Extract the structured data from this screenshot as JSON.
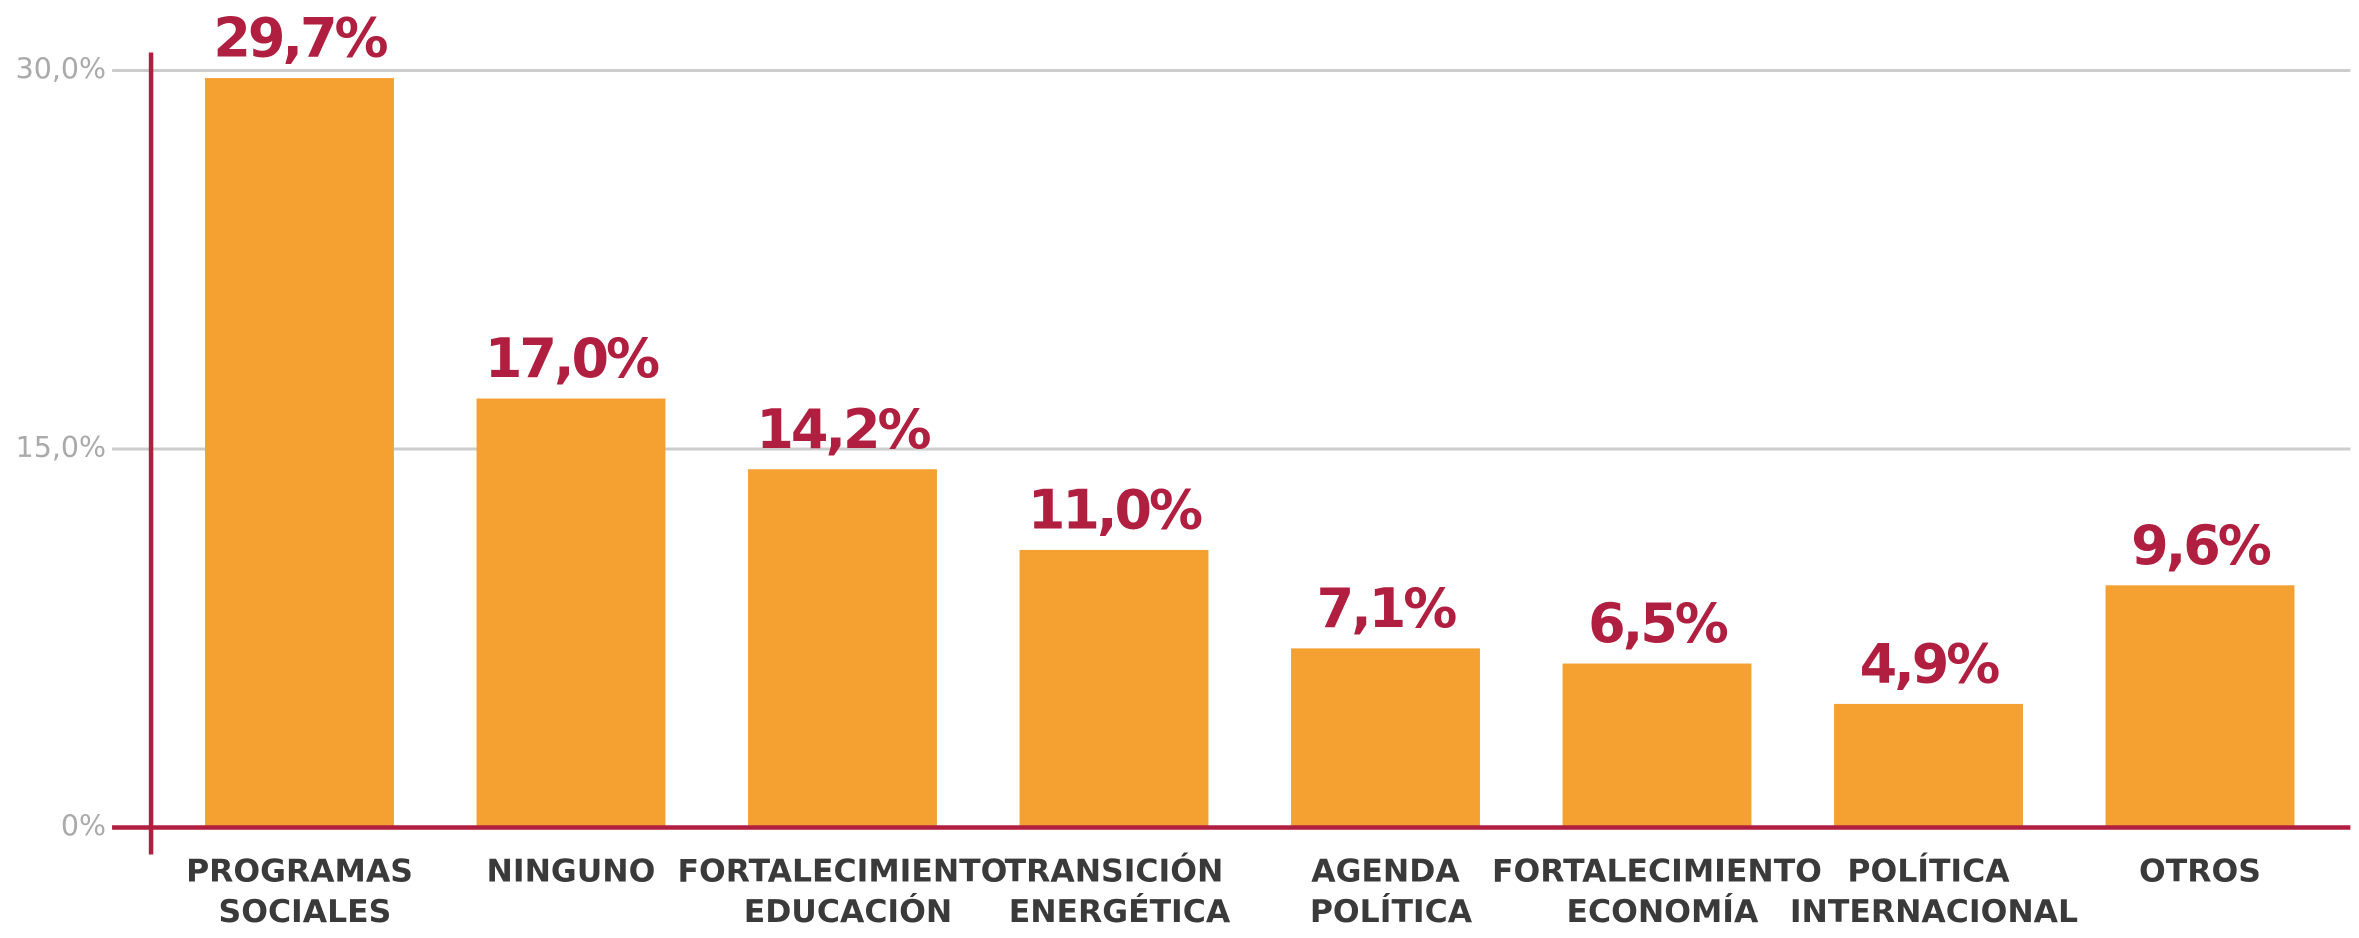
{
  "chart_data": {
    "type": "bar",
    "categories": [
      "PROGRAMAS SOCIALES",
      "NINGUNO",
      "FORTALECIMIENTO EDUCACIÓN",
      "TRANSICIÓN ENERGÉTICA",
      "AGENDA POLÍTICA",
      "FORTALECIMIENTO ECONOMÍA",
      "POLÍTICA INTERNACIONAL",
      "OTROS"
    ],
    "values": [
      29.7,
      17.0,
      14.2,
      11.0,
      7.1,
      6.5,
      4.9,
      9.6
    ],
    "value_labels": [
      "29,7%",
      "17,0%",
      "14,2%",
      "11,0%",
      "7,1%",
      "6,5%",
      "4,9%",
      "9,6%"
    ],
    "color": "#f4a132",
    "label_color": "#b01f3f",
    "axis_color": "#b01f3f",
    "ylim": [
      0,
      30
    ],
    "yticks": [
      {
        "value": 0,
        "label": "0%"
      },
      {
        "value": 15,
        "label": "15,0%"
      },
      {
        "value": 30,
        "label": "30,0%"
      }
    ],
    "grid": true
  }
}
